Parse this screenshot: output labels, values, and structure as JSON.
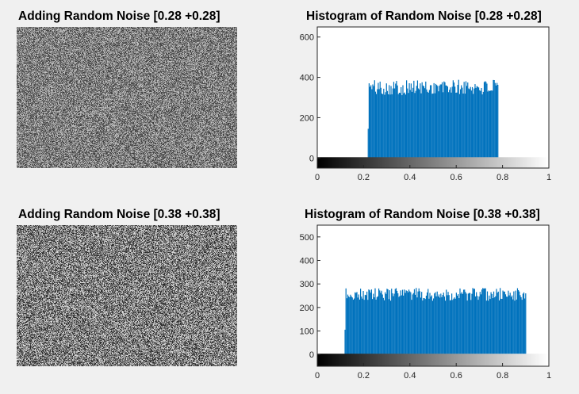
{
  "panels": [
    {
      "image_title": "Adding Random Noise [0.28 +0.28]",
      "hist_title": "Histogram of Random Noise [0.28 +0.28]"
    },
    {
      "image_title": "Adding Random Noise [0.38 +0.38]",
      "hist_title": "Histogram of Random Noise [0.38 +0.38]"
    }
  ],
  "chart_data": [
    {
      "type": "bar",
      "title": "Histogram of Random Noise [0.28 +0.28]",
      "xlabel": "",
      "ylabel": "",
      "xlim": [
        0,
        1
      ],
      "ylim": [
        -50,
        650
      ],
      "x_ticks": [
        0,
        0.2,
        0.4,
        0.6,
        0.8,
        1
      ],
      "x_tick_labels": [
        "0",
        "0.2",
        "0.4",
        "0.6",
        "0.8",
        "1"
      ],
      "y_ticks": [
        0,
        200,
        400,
        600
      ],
      "y_tick_labels": [
        "0",
        "200",
        "400",
        "600"
      ],
      "bar_range": [
        0.22,
        0.78
      ],
      "bar_count": 143,
      "approx_bin_value": 350,
      "color": "#0072bd",
      "colorbar": "grayscale 0 to 1"
    },
    {
      "type": "bar",
      "title": "Histogram of Random Noise [0.38 +0.38]",
      "xlabel": "",
      "ylabel": "",
      "xlim": [
        0,
        1
      ],
      "ylim": [
        -50,
        550
      ],
      "x_ticks": [
        0,
        0.2,
        0.4,
        0.6,
        0.8,
        1
      ],
      "x_tick_labels": [
        "0",
        "0.2",
        "0.4",
        "0.6",
        "0.8",
        "1"
      ],
      "y_ticks": [
        0,
        100,
        200,
        300,
        400,
        500
      ],
      "y_tick_labels": [
        "0",
        "100",
        "200",
        "300",
        "400",
        "500"
      ],
      "bar_range": [
        0.12,
        0.9
      ],
      "bar_count": 199,
      "approx_bin_value": 255,
      "color": "#0072bd",
      "colorbar": "grayscale 0 to 1"
    }
  ]
}
